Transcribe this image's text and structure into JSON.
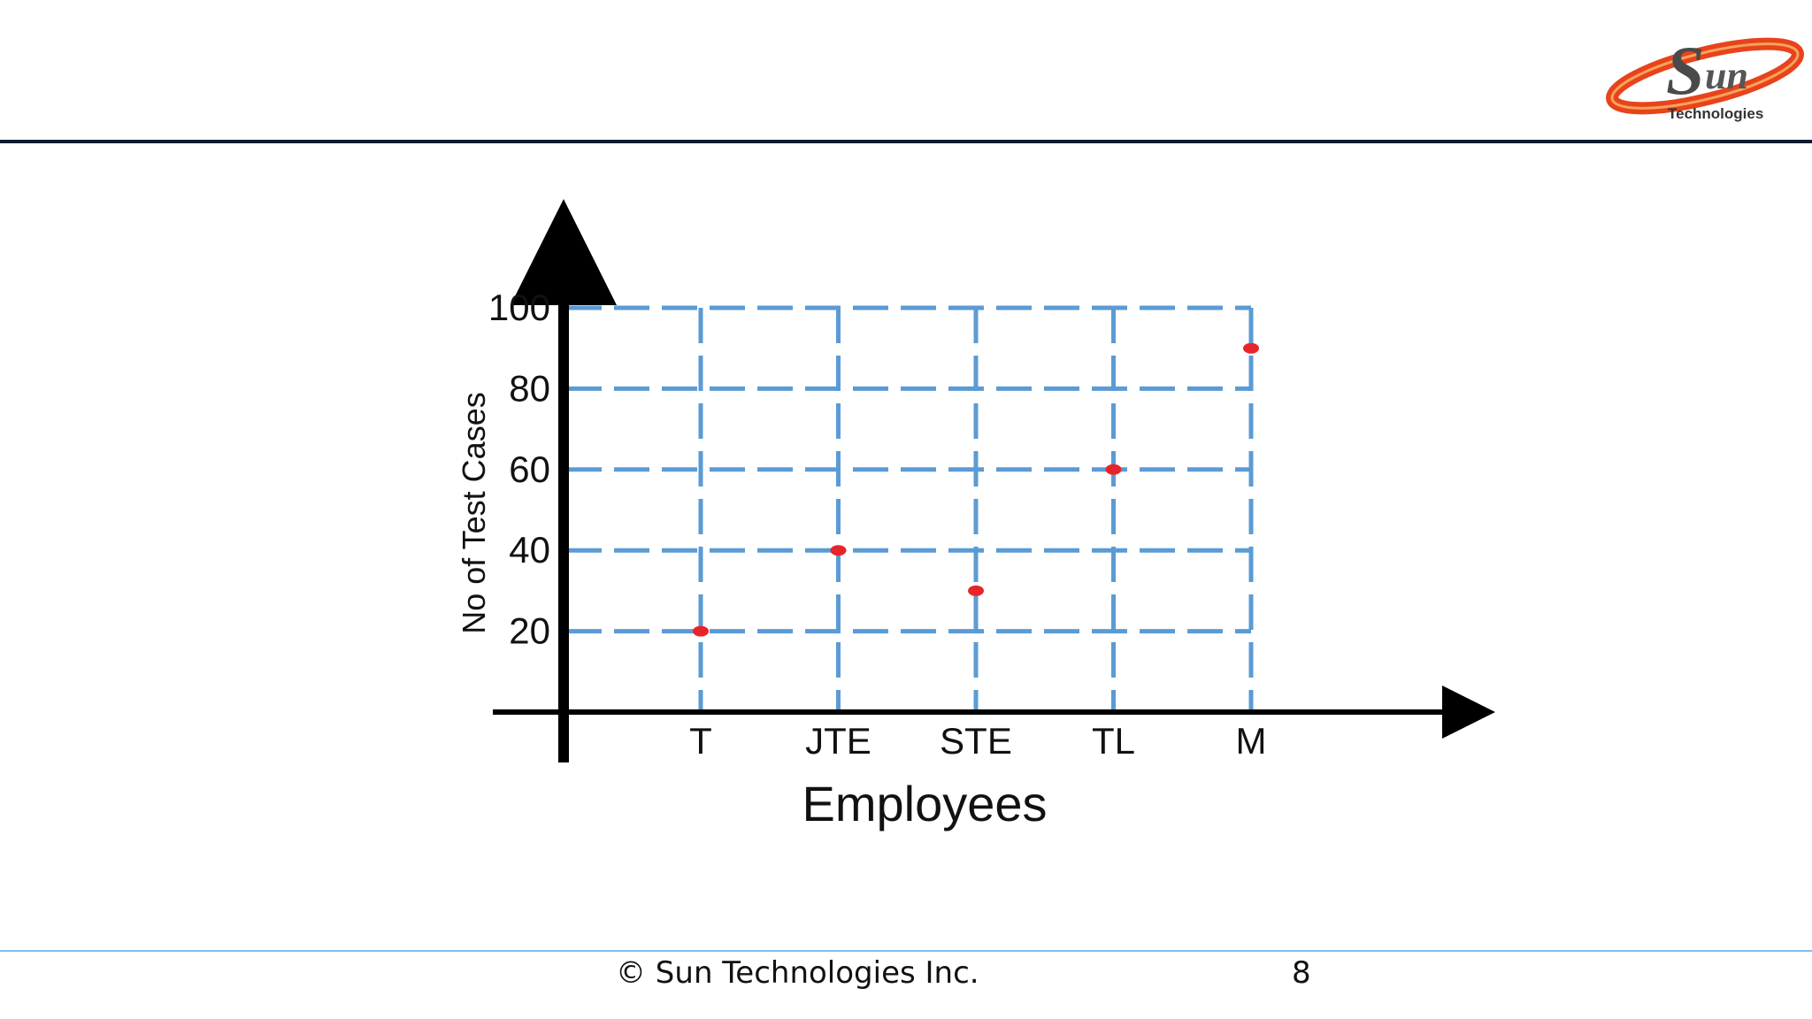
{
  "logo": {
    "text": "Technologies",
    "colors": {
      "ring": "#e8431b",
      "letters": "#4a4a4a"
    }
  },
  "footer": {
    "copyright": "© Sun Technologies Inc.",
    "page_number": "8"
  },
  "chart_data": {
    "type": "scatter",
    "xlabel": "Employees",
    "ylabel": "No of Test Cases",
    "categories": [
      "T",
      "JTE",
      "STE",
      "TL",
      "M"
    ],
    "values": [
      20,
      40,
      30,
      60,
      90
    ],
    "yticks": [
      20,
      40,
      60,
      80,
      100
    ],
    "ylim": [
      0,
      100
    ],
    "grid": true,
    "colors": {
      "grid": "#5b9bd5",
      "points": "#e8242b",
      "axes": "#000000"
    }
  }
}
